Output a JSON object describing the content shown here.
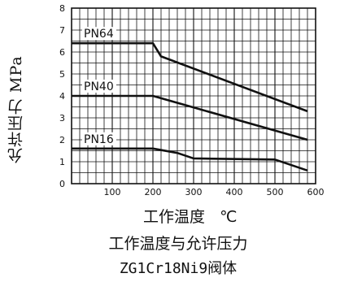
{
  "chart_data": {
    "type": "line",
    "title": "工作温度与允许压力",
    "subtitle": "ZG1Cr18Ni9阀体",
    "xlabel": "工作温度   ℃",
    "ylabel": "允许压力 MPa",
    "xlim": [
      0,
      600
    ],
    "ylim": [
      0,
      8
    ],
    "xticks": [
      "100",
      "200",
      "300",
      "400",
      "500",
      "600"
    ],
    "yticks": [
      "0",
      "1",
      "2",
      "3",
      "4",
      "5",
      "6",
      "7",
      "8"
    ],
    "grid": true,
    "series": [
      {
        "name": "PN64",
        "x": [
          0,
          200,
          220,
          580
        ],
        "y": [
          6.4,
          6.4,
          5.8,
          3.3
        ]
      },
      {
        "name": "PN40",
        "x": [
          0,
          200,
          580
        ],
        "y": [
          4.0,
          4.0,
          2.0
        ]
      },
      {
        "name": "PN16",
        "x": [
          0,
          200,
          260,
          300,
          500,
          580
        ],
        "y": [
          1.6,
          1.6,
          1.4,
          1.15,
          1.1,
          0.6
        ]
      }
    ]
  }
}
